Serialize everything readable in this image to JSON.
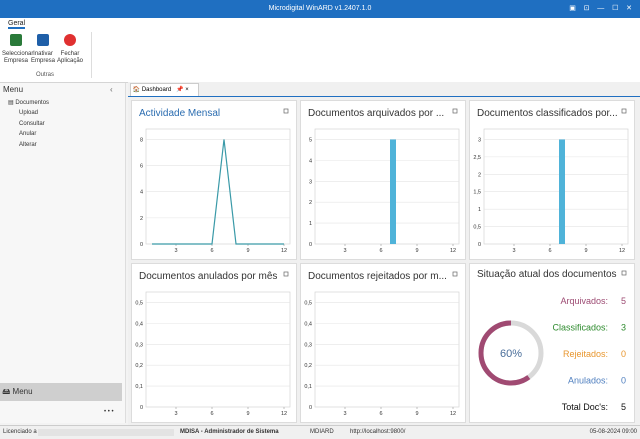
{
  "window": {
    "title": "Microdigital WinARD v1.2407.1.0"
  },
  "ribbon": {
    "tab": "Geral",
    "buttons": [
      [
        "Seleccionar",
        "Empresa"
      ],
      [
        "Inativar",
        "Empresa"
      ],
      [
        "Fechar",
        "Aplicação"
      ]
    ],
    "group": "Outras"
  },
  "menu": {
    "title": "Menu",
    "root": "Documentos",
    "items": [
      "Upload",
      "Consultar",
      "Anular",
      "Alterar"
    ],
    "button": "Menu",
    "more": "• • •"
  },
  "tab": "Dashboard",
  "chart_data": [
    {
      "type": "line",
      "title": "Actividade Mensal",
      "x": [
        1,
        2,
        3,
        4,
        5,
        6,
        7,
        8,
        9,
        10,
        11,
        12
      ],
      "values": [
        0,
        0,
        0,
        0,
        0,
        0,
        8,
        0,
        0,
        0,
        0,
        0
      ],
      "color": "#3a9aa8",
      "xlim": [
        0.5,
        12.5
      ],
      "xticks": [
        3,
        6,
        9,
        12
      ],
      "ylim": [
        0,
        8.8
      ],
      "yticks": [
        0,
        2,
        4,
        6,
        8
      ],
      "grid": true
    },
    {
      "type": "bar",
      "title": "Documentos arquivados por ...",
      "x": [
        1,
        2,
        3,
        4,
        5,
        6,
        7,
        8,
        9,
        10,
        11,
        12
      ],
      "values": [
        0,
        0,
        0,
        0,
        0,
        0,
        5,
        0,
        0,
        0,
        0,
        0
      ],
      "color": "#4fb3d9",
      "xlim": [
        0.5,
        12.5
      ],
      "xticks": [
        3,
        6,
        9,
        12
      ],
      "ylim": [
        0,
        5.5
      ],
      "yticks": [
        0,
        1,
        2,
        3,
        4,
        5
      ],
      "grid": true
    },
    {
      "type": "bar",
      "title": "Documentos classificados por...",
      "x": [
        1,
        2,
        3,
        4,
        5,
        6,
        7,
        8,
        9,
        10,
        11,
        12
      ],
      "values": [
        0,
        0,
        0,
        0,
        0,
        0,
        3,
        0,
        0,
        0,
        0,
        0
      ],
      "color": "#4fb3d9",
      "xlim": [
        0.5,
        12.5
      ],
      "xticks": [
        3,
        6,
        9,
        12
      ],
      "ylim": [
        0,
        3.3
      ],
      "yticks": [
        0,
        {
          "value": 0.5,
          "label": "0,5"
        },
        1,
        {
          "value": 1.5,
          "label": "1,5"
        },
        2,
        {
          "value": 2.5,
          "label": "2,5"
        },
        3
      ],
      "grid": true
    },
    {
      "type": "bar",
      "title": "Documentos anulados por mês",
      "xlim": [
        0.5,
        12.5
      ],
      "xticks": [
        3,
        6,
        9,
        12
      ],
      "ylim": [
        0,
        0.55
      ],
      "yticks": [
        0,
        {
          "value": 0.1,
          "label": "0,1"
        },
        {
          "value": 0.2,
          "label": "0,2"
        },
        {
          "value": 0.3,
          "label": "0,3"
        },
        {
          "value": 0.4,
          "label": "0,4"
        },
        {
          "value": 0.5,
          "label": "0,5"
        }
      ],
      "grid": true
    },
    {
      "type": "bar",
      "title": "Documentos rejeitados por m...",
      "xlim": [
        0.5,
        12.5
      ],
      "xticks": [
        3,
        6,
        9,
        12
      ],
      "ylim": [
        0,
        0.55
      ],
      "yticks": [
        0,
        {
          "value": 0.1,
          "label": "0,1"
        },
        {
          "value": 0.2,
          "label": "0,2"
        },
        {
          "value": 0.3,
          "label": "0,3"
        },
        {
          "value": 0.4,
          "label": "0,4"
        },
        {
          "value": 0.5,
          "label": "0,5"
        }
      ],
      "grid": true
    }
  ],
  "summary": {
    "title": "Situação atual dos documentos",
    "gauge": {
      "value": 60,
      "label": "60%"
    },
    "items": [
      {
        "name": "Arquivados:",
        "value": 5
      },
      {
        "name": "Classificados:",
        "value": 3
      },
      {
        "name": "Rejeitados:",
        "value": 0
      },
      {
        "name": "Anulados:",
        "value": 0
      },
      {
        "name": "Total Doc's:",
        "value": 5
      }
    ]
  },
  "status_bar": {
    "license": "Licenciado a :",
    "user": "MDISA - Administrador de Sistema",
    "db": "MDIARD",
    "url": "http://localhost:9800/",
    "datetime": "05-08-2024 09:00"
  }
}
